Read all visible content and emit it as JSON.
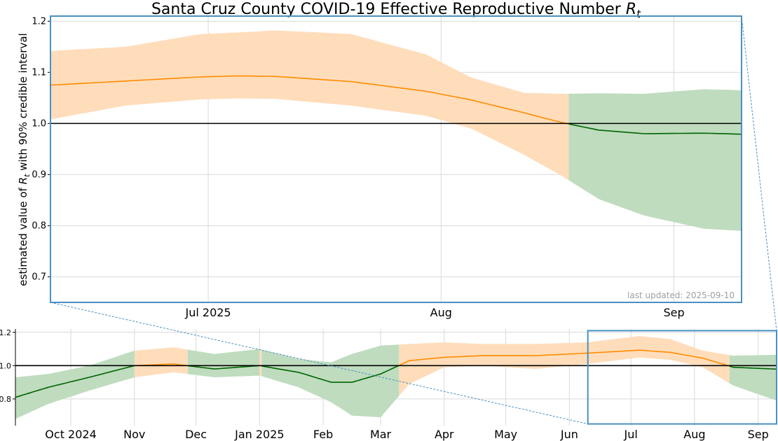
{
  "chart_data": [
    {
      "type": "area",
      "title": "Santa Cruz County COVID-19 Effective Reproductive Number",
      "title_math": "R",
      "title_sub": "t",
      "ylabel_parts": [
        "estimated value of ",
        "R",
        "t",
        " with 90% credible interval"
      ],
      "footnote": "last updated: 2025-09-10",
      "xlim": [
        "2025-06-10",
        "2025-09-10"
      ],
      "ylim": [
        0.65,
        1.21
      ],
      "x_ticks": [
        {
          "date": "2025-07-01",
          "label": "Jul 2025"
        },
        {
          "date": "2025-08-01",
          "label": "Aug"
        },
        {
          "date": "2025-09-01",
          "label": "Sep"
        }
      ],
      "y_ticks": [
        0.7,
        0.8,
        0.9,
        1.0,
        1.1,
        1.2
      ],
      "reference_line": 1.0,
      "colors": {
        "above": "#ff8c00",
        "below": "#006400",
        "band_above": "#ffddbb",
        "band_below": "#bfdcbf",
        "frame": "#4a90c2"
      },
      "series": [
        {
          "x": [
            "2025-06-10",
            "2025-06-20",
            "2025-06-30",
            "2025-07-05",
            "2025-07-10",
            "2025-07-20",
            "2025-07-30",
            "2025-08-05",
            "2025-08-12",
            "2025-08-17",
            "2025-08-22",
            "2025-08-28",
            "2025-09-05",
            "2025-09-10"
          ],
          "median": [
            1.075,
            1.083,
            1.091,
            1.093,
            1.092,
            1.082,
            1.063,
            1.046,
            1.021,
            1.002,
            0.987,
            0.98,
            0.981,
            0.979
          ],
          "lower": [
            1.008,
            1.035,
            1.047,
            1.049,
            1.048,
            1.035,
            1.015,
            0.99,
            0.939,
            0.898,
            0.852,
            0.82,
            0.794,
            0.79
          ],
          "upper": [
            1.142,
            1.15,
            1.175,
            1.178,
            1.182,
            1.175,
            1.135,
            1.09,
            1.06,
            1.058,
            1.059,
            1.058,
            1.067,
            1.065
          ]
        }
      ]
    },
    {
      "type": "area",
      "xlim": [
        "2024-09-04",
        "2025-09-10"
      ],
      "ylim": [
        0.64,
        1.22
      ],
      "zoom_range": {
        "x": [
          "2025-06-10",
          "2025-09-10"
        ],
        "y": [
          0.65,
          1.21
        ]
      },
      "x_ticks": [
        {
          "date": "2024-10-01",
          "label": "Oct 2024"
        },
        {
          "date": "2024-11-01",
          "label": "Nov"
        },
        {
          "date": "2024-12-01",
          "label": "Dec"
        },
        {
          "date": "2025-01-01",
          "label": "Jan 2025"
        },
        {
          "date": "2025-02-01",
          "label": "Feb"
        },
        {
          "date": "2025-03-01",
          "label": "Mar"
        },
        {
          "date": "2025-04-01",
          "label": "Apr"
        },
        {
          "date": "2025-05-01",
          "label": "May"
        },
        {
          "date": "2025-06-01",
          "label": "Jun"
        },
        {
          "date": "2025-07-01",
          "label": "Jul"
        },
        {
          "date": "2025-08-01",
          "label": "Aug"
        },
        {
          "date": "2025-09-01",
          "label": "Sep"
        }
      ],
      "y_ticks": [
        0.8,
        1.0,
        1.2
      ],
      "reference_line": 1.0,
      "series": [
        {
          "x": [
            "2024-09-04",
            "2024-09-20",
            "2024-10-10",
            "2024-11-01",
            "2024-11-20",
            "2024-12-10",
            "2025-01-01",
            "2025-01-20",
            "2025-02-05",
            "2025-02-15",
            "2025-03-01",
            "2025-03-15",
            "2025-04-01",
            "2025-04-20",
            "2025-05-15",
            "2025-06-10",
            "2025-07-05",
            "2025-07-20",
            "2025-08-05",
            "2025-08-20",
            "2025-09-10"
          ],
          "median": [
            0.81,
            0.87,
            0.93,
            1.0,
            1.01,
            0.98,
            1.0,
            0.96,
            0.9,
            0.9,
            0.95,
            1.03,
            1.05,
            1.06,
            1.06,
            1.075,
            1.093,
            1.08,
            1.045,
            0.99,
            0.979
          ],
          "lower": [
            0.68,
            0.77,
            0.85,
            0.93,
            0.96,
            0.93,
            0.94,
            0.87,
            0.78,
            0.7,
            0.69,
            0.89,
            0.99,
            1.0,
            0.98,
            1.01,
            1.049,
            1.035,
            0.99,
            0.88,
            0.79
          ],
          "upper": [
            0.93,
            0.95,
            1.0,
            1.09,
            1.11,
            1.07,
            1.1,
            1.04,
            1.02,
            1.07,
            1.12,
            1.13,
            1.14,
            1.13,
            1.13,
            1.14,
            1.178,
            1.16,
            1.09,
            1.06,
            1.065
          ]
        }
      ]
    }
  ]
}
